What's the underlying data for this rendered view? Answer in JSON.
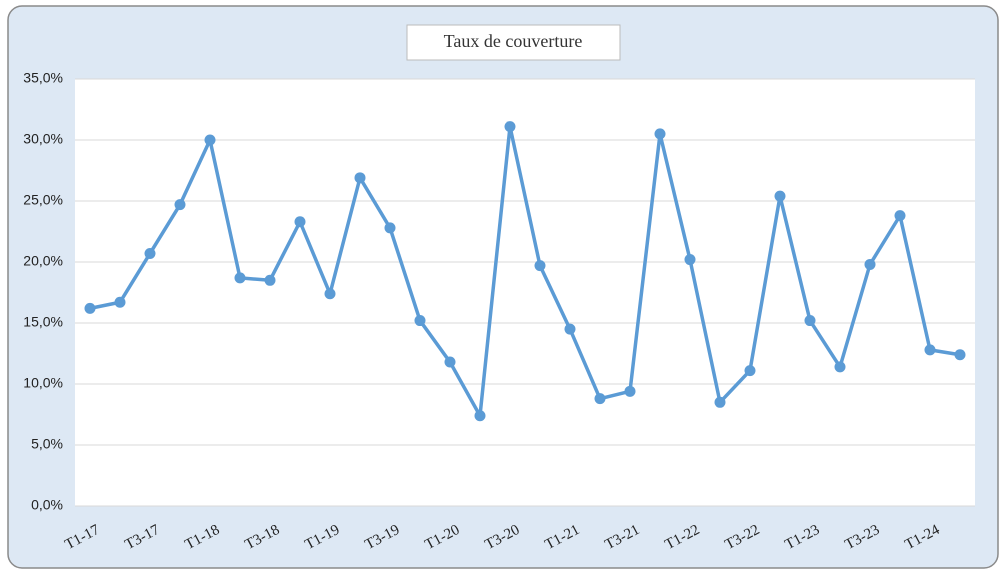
{
  "chart_data": {
    "type": "line",
    "title": "Taux de couverture",
    "categories": [
      "T1-17",
      null,
      "T3-17",
      null,
      "T1-18",
      null,
      "T3-18",
      null,
      "T1-19",
      null,
      "T3-19",
      null,
      "T1-20",
      null,
      "T3-20",
      null,
      "T1-21",
      null,
      "T3-21",
      null,
      "T1-22",
      null,
      "T3-22",
      null,
      "T1-23",
      null,
      "T3-23",
      null,
      "T1-24",
      null
    ],
    "series": [
      {
        "name": "Taux de couverture",
        "color": "#5b9bd5",
        "values": [
          16.2,
          16.7,
          20.7,
          24.7,
          30.0,
          18.7,
          18.5,
          23.3,
          17.4,
          26.9,
          22.8,
          15.2,
          11.8,
          7.4,
          31.1,
          19.7,
          14.5,
          8.8,
          9.4,
          30.5,
          20.2,
          8.5,
          11.1,
          25.4,
          15.2,
          11.4,
          19.8,
          23.8,
          12.8,
          12.4
        ]
      }
    ],
    "ylim": [
      0,
      35
    ],
    "yticks": [
      {
        "value": 0,
        "label": "0,0%"
      },
      {
        "value": 5,
        "label": "5,0%"
      },
      {
        "value": 10,
        "label": "10,0%"
      },
      {
        "value": 15,
        "label": "15,0%"
      },
      {
        "value": 20,
        "label": "20,0%"
      },
      {
        "value": 25,
        "label": "25,0%"
      },
      {
        "value": 30,
        "label": "30,0%"
      },
      {
        "value": 35,
        "label": "35,0%"
      }
    ],
    "grid": true
  }
}
